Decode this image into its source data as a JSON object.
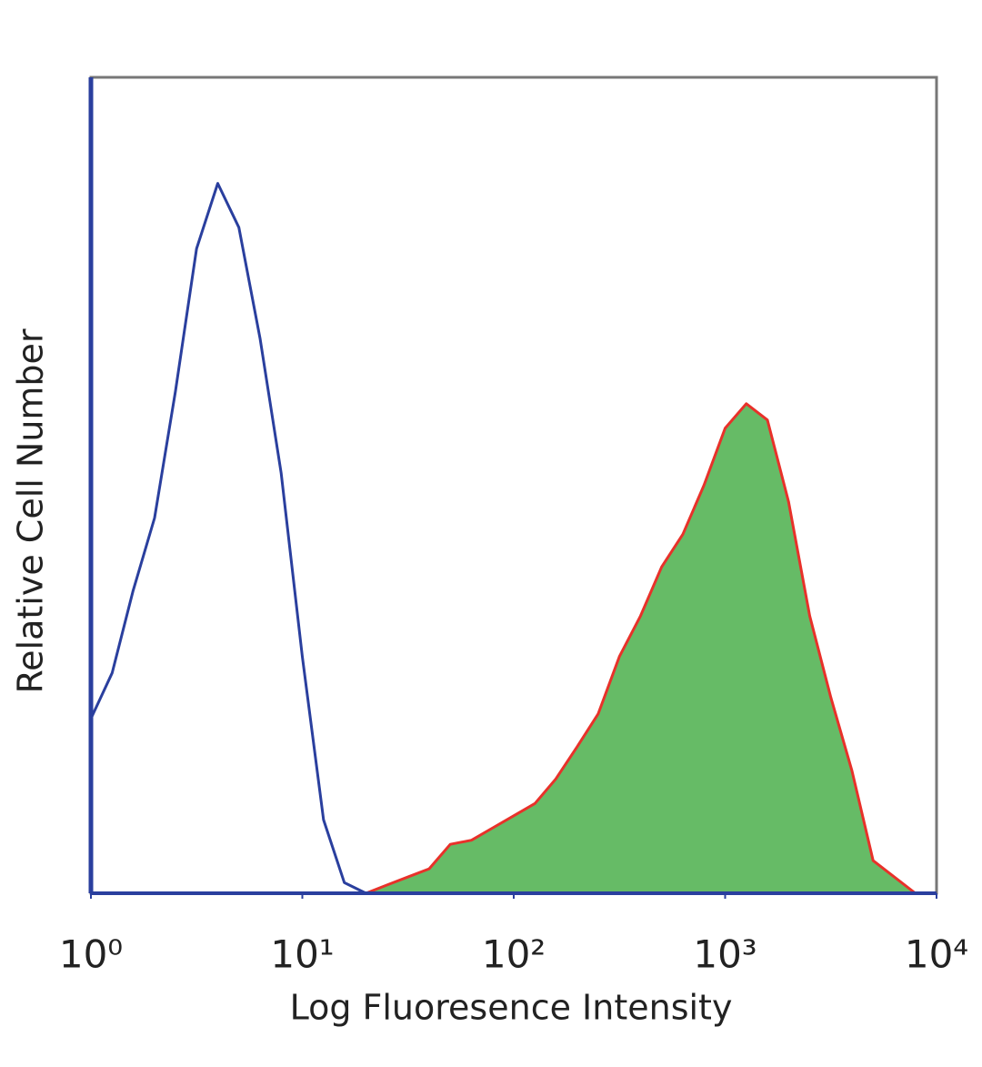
{
  "chart_data": {
    "type": "histogram-overlay",
    "xlabel": "Log Fluoresence Intensity",
    "ylabel": "Relative Cell Number",
    "xscale": "log",
    "xlim": [
      1,
      10000
    ],
    "ylim": [
      0,
      100
    ],
    "xticks": [
      {
        "value": 1,
        "label": "10⁰"
      },
      {
        "value": 10,
        "label": "10¹"
      },
      {
        "value": 100,
        "label": "10²"
      },
      {
        "value": 1000,
        "label": "10³"
      },
      {
        "value": 10000,
        "label": "10⁴"
      }
    ],
    "x": [
      1,
      1.26,
      1.58,
      2,
      2.51,
      3.16,
      3.98,
      5.01,
      6.31,
      7.94,
      10,
      12.6,
      15.8,
      20,
      25.1,
      31.6,
      39.8,
      50.1,
      63.1,
      79.4,
      100,
      126,
      158,
      200,
      251,
      316,
      398,
      501,
      631,
      794,
      1000,
      1259,
      1585,
      1995,
      2512,
      3162,
      3981,
      5012,
      6310,
      7943
    ],
    "series": [
      {
        "color": "#2a3f9e",
        "fill": false,
        "values": [
          21.4,
          27,
          37,
          46,
          61.5,
          79,
          87,
          81.6,
          68,
          51.5,
          29,
          9,
          1.3,
          0,
          0,
          0,
          0,
          0,
          0,
          0,
          0,
          0,
          0,
          0,
          0,
          0,
          0,
          0,
          0,
          0,
          0,
          0,
          0,
          0,
          0,
          0,
          0,
          0,
          0,
          0
        ]
      },
      {
        "color": "#e8312a",
        "fill_color": "#66bb66",
        "fill": true,
        "values": [
          null,
          null,
          null,
          null,
          null,
          null,
          null,
          null,
          null,
          null,
          null,
          null,
          null,
          0,
          1,
          2,
          3,
          6,
          6.5,
          8,
          9.5,
          11,
          14,
          18,
          22,
          29,
          34,
          40,
          44,
          50,
          57,
          60,
          58,
          48,
          34,
          24,
          15,
          4,
          2,
          0
        ]
      }
    ]
  }
}
